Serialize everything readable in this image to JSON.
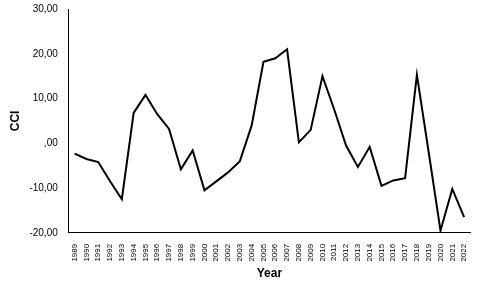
{
  "chart_data": {
    "type": "line",
    "x_label": "Year",
    "y_label": "CCI",
    "categories": [
      "1989",
      "1990",
      "1991",
      "1992",
      "1993",
      "1994",
      "1995",
      "1996",
      "1997",
      "1998",
      "1999",
      "2000",
      "2001",
      "2002",
      "2003",
      "2004",
      "2005",
      "2006",
      "2007",
      "2008",
      "2009",
      "2010",
      "2011",
      "2012",
      "2013",
      "2014",
      "2015",
      "2016",
      "2017",
      "2018",
      "2019",
      "2020",
      "2021",
      "2022"
    ],
    "values": [
      -2.3,
      -3.5,
      -4.2,
      -8.5,
      -12.5,
      6.8,
      10.8,
      6.5,
      3.2,
      -5.8,
      -1.6,
      -10.5,
      -8.5,
      -6.5,
      -4.0,
      4.0,
      18.2,
      19.0,
      21.0,
      0.2,
      3.0,
      15.0,
      7.5,
      -0.5,
      -5.3,
      -0.8,
      -9.5,
      -8.3,
      -7.8,
      15.3,
      -2.0,
      -19.5,
      -10.2,
      -16.5
    ],
    "color": "#000000",
    "ylim": [
      -20,
      30
    ],
    "yticks": [
      {
        "value": -20,
        "label": "-20,00"
      },
      {
        "value": -10,
        "label": "-10,00"
      },
      {
        "value": 0,
        "label": ",00"
      },
      {
        "value": 10,
        "label": "10,00"
      },
      {
        "value": 20,
        "label": "20,00"
      },
      {
        "value": 30,
        "label": "30,00"
      }
    ],
    "grid": false,
    "marker": "none",
    "line_style": "solid"
  }
}
